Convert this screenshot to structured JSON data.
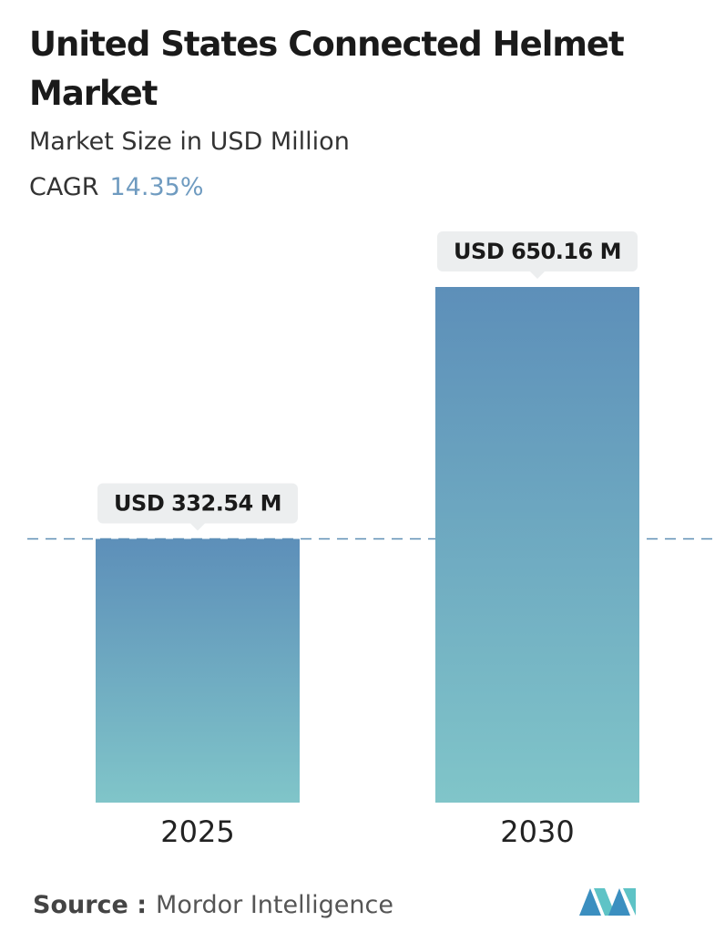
{
  "chart_data": {
    "type": "bar",
    "title": "United States Connected Helmet Market",
    "subtitle": "Market Size in USD Million",
    "cagr_label": "CAGR",
    "cagr_value": "14.35%",
    "categories": [
      "2025",
      "2030"
    ],
    "values": [
      332.54,
      650.16
    ],
    "value_labels": [
      "USD 332.54 M",
      "USD 650.16 M"
    ],
    "source_label": "Source :",
    "source": "Mordor Intelligence"
  }
}
